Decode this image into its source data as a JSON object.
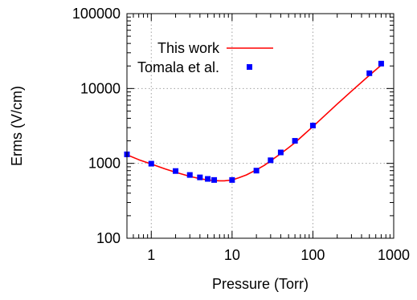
{
  "chart_data": {
    "type": "line",
    "xlabel": "Pressure (Torr)",
    "ylabel": "Erms (V/cm)",
    "xscale": "log",
    "yscale": "log",
    "xlim": [
      0.5,
      1000
    ],
    "ylim": [
      100,
      100000
    ],
    "grid": true,
    "legend_position": "top-left",
    "x_ticks": [
      {
        "value": 1,
        "label": "1"
      },
      {
        "value": 10,
        "label": "10"
      },
      {
        "value": 100,
        "label": "100"
      },
      {
        "value": 1000,
        "label": "1000"
      }
    ],
    "y_ticks": [
      {
        "value": 100,
        "label": "100"
      },
      {
        "value": 1000,
        "label": "1000"
      },
      {
        "value": 10000,
        "label": "10000"
      },
      {
        "value": 100000,
        "label": "100000"
      }
    ],
    "series": [
      {
        "name": "This work",
        "kind": "line",
        "color": "#ff0000",
        "x": [
          0.5,
          0.7,
          1,
          1.5,
          2,
          3,
          4,
          5,
          6,
          7,
          8,
          10,
          12,
          15,
          20,
          25,
          30,
          40,
          50,
          60,
          80,
          100,
          200,
          300,
          500,
          700
        ],
        "y": [
          1300,
          1120,
          980,
          840,
          760,
          670,
          625,
          600,
          590,
          585,
          585,
          600,
          640,
          700,
          820,
          940,
          1080,
          1350,
          1620,
          1890,
          2500,
          3100,
          6200,
          9200,
          15000,
          20500
        ]
      },
      {
        "name": "Tomala et al.",
        "kind": "scatter",
        "color": "#0000ff",
        "x": [
          0.5,
          1,
          2,
          3,
          4,
          5,
          6,
          10,
          20,
          30,
          40,
          60,
          100,
          500,
          700
        ],
        "y": [
          1320,
          990,
          790,
          700,
          650,
          620,
          600,
          600,
          800,
          1100,
          1400,
          2000,
          3200,
          16000,
          21500
        ]
      }
    ]
  }
}
